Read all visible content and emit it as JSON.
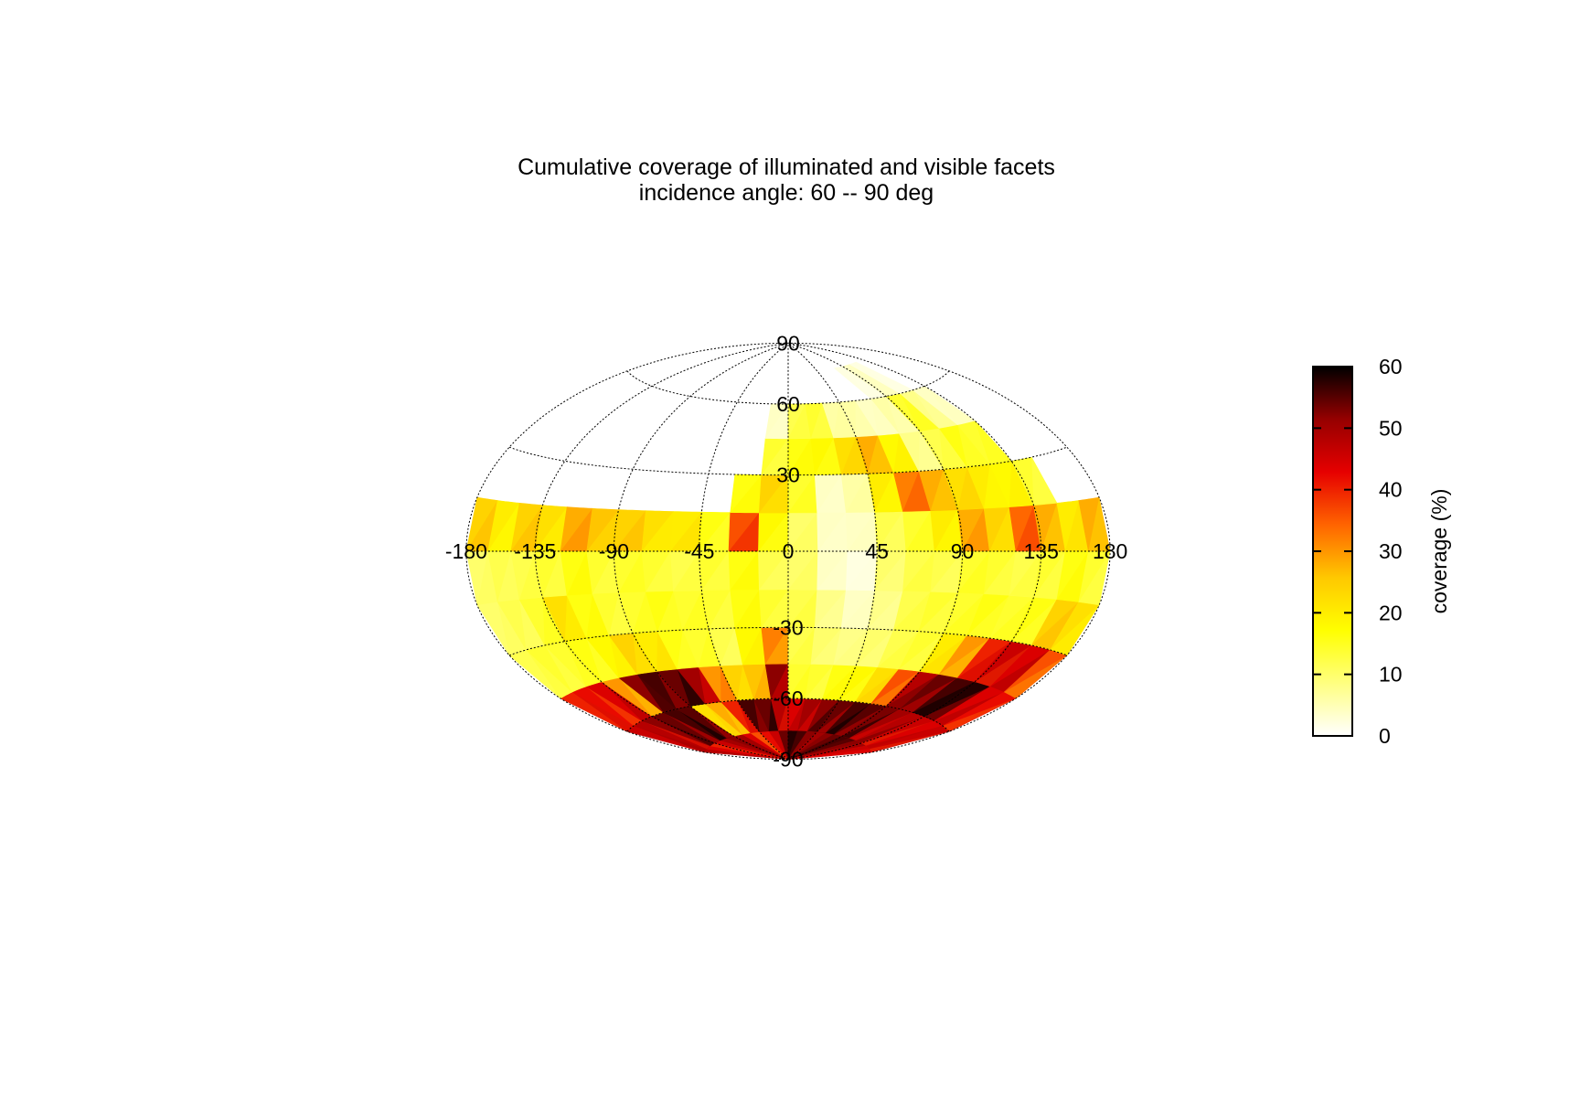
{
  "chart_data": {
    "type": "heatmap",
    "projection": "hammer-aitoff",
    "title": "Cumulative coverage of illuminated and visible facets",
    "subtitle": "incidence angle: 60 -- 90 deg",
    "lon_ticks": [
      "-180",
      "-135",
      "-90",
      "-45",
      "0",
      "45",
      "90",
      "135",
      "180"
    ],
    "lat_ticks": [
      "90",
      "60",
      "30",
      "-30",
      "-60",
      "-90"
    ],
    "lon_range": [
      -180,
      180
    ],
    "lat_range": [
      -90,
      90
    ],
    "grid": true,
    "colorbar": {
      "label": "coverage (%)",
      "range": [
        0,
        60
      ],
      "ticks": [
        "0",
        "10",
        "20",
        "30",
        "40",
        "50",
        "60"
      ],
      "colors": [
        "#ffffff",
        "#ffff80",
        "#ffff00",
        "#ffc800",
        "#ff6400",
        "#e60000",
        "#960000",
        "#000000"
      ]
    },
    "lat_bands": [
      -90,
      -75,
      -60,
      -45,
      -30,
      -15,
      0,
      15,
      30,
      45,
      60,
      75
    ],
    "lon_step": 15,
    "cells": [
      [
        48,
        44,
        40,
        46,
        50,
        52,
        50,
        44,
        36,
        42,
        46,
        54,
        58,
        56,
        52,
        50,
        52,
        54,
        56,
        55,
        52,
        50,
        46,
        44
      ],
      [
        46,
        48,
        52,
        54,
        56,
        55,
        22,
        28,
        40,
        56,
        54,
        48,
        44,
        50,
        52,
        54,
        56,
        55,
        53,
        50,
        48,
        46,
        44,
        46
      ],
      [
        40,
        42,
        44,
        30,
        52,
        56,
        54,
        50,
        30,
        24,
        26,
        52,
        14,
        14,
        16,
        18,
        22,
        36,
        48,
        54,
        56,
        58,
        44,
        42
      ],
      [
        12,
        14,
        14,
        16,
        18,
        24,
        20,
        16,
        14,
        12,
        18,
        32,
        12,
        10,
        8,
        10,
        12,
        14,
        20,
        30,
        40,
        46,
        44,
        36
      ],
      [
        10,
        12,
        14,
        22,
        16,
        14,
        14,
        16,
        14,
        14,
        16,
        14,
        12,
        8,
        4,
        8,
        12,
        14,
        14,
        16,
        14,
        16,
        24,
        22
      ],
      [
        10,
        12,
        12,
        14,
        16,
        14,
        14,
        14,
        12,
        14,
        16,
        12,
        10,
        4,
        2,
        10,
        12,
        12,
        14,
        14,
        12,
        14,
        16,
        14
      ],
      [
        24,
        20,
        24,
        22,
        28,
        26,
        24,
        22,
        20,
        16,
        36,
        18,
        10,
        4,
        4,
        12,
        14,
        20,
        28,
        24,
        34,
        28,
        20,
        28
      ],
      [
        0,
        0,
        0,
        0,
        0,
        0,
        0,
        0,
        0,
        0,
        16,
        24,
        14,
        4,
        6,
        20,
        32,
        28,
        22,
        20,
        18,
        14,
        0,
        0
      ],
      [
        0,
        0,
        0,
        0,
        0,
        0,
        0,
        0,
        0,
        0,
        0,
        14,
        16,
        18,
        22,
        28,
        18,
        8,
        12,
        16,
        14,
        0,
        0,
        0
      ],
      [
        0,
        0,
        0,
        0,
        0,
        0,
        0,
        0,
        0,
        0,
        0,
        4,
        12,
        14,
        6,
        6,
        4,
        6,
        14,
        8,
        4,
        0,
        0,
        0
      ],
      [
        0,
        0,
        0,
        0,
        0,
        0,
        0,
        0,
        0,
        0,
        0,
        0,
        0,
        0,
        0,
        0,
        0,
        2,
        4,
        2,
        0,
        0,
        0,
        0
      ],
      [
        0,
        0,
        0,
        0,
        0,
        0,
        0,
        0,
        0,
        0,
        0,
        0,
        0,
        0,
        0,
        0,
        0,
        0,
        0,
        0,
        0,
        0,
        0,
        0
      ]
    ]
  }
}
